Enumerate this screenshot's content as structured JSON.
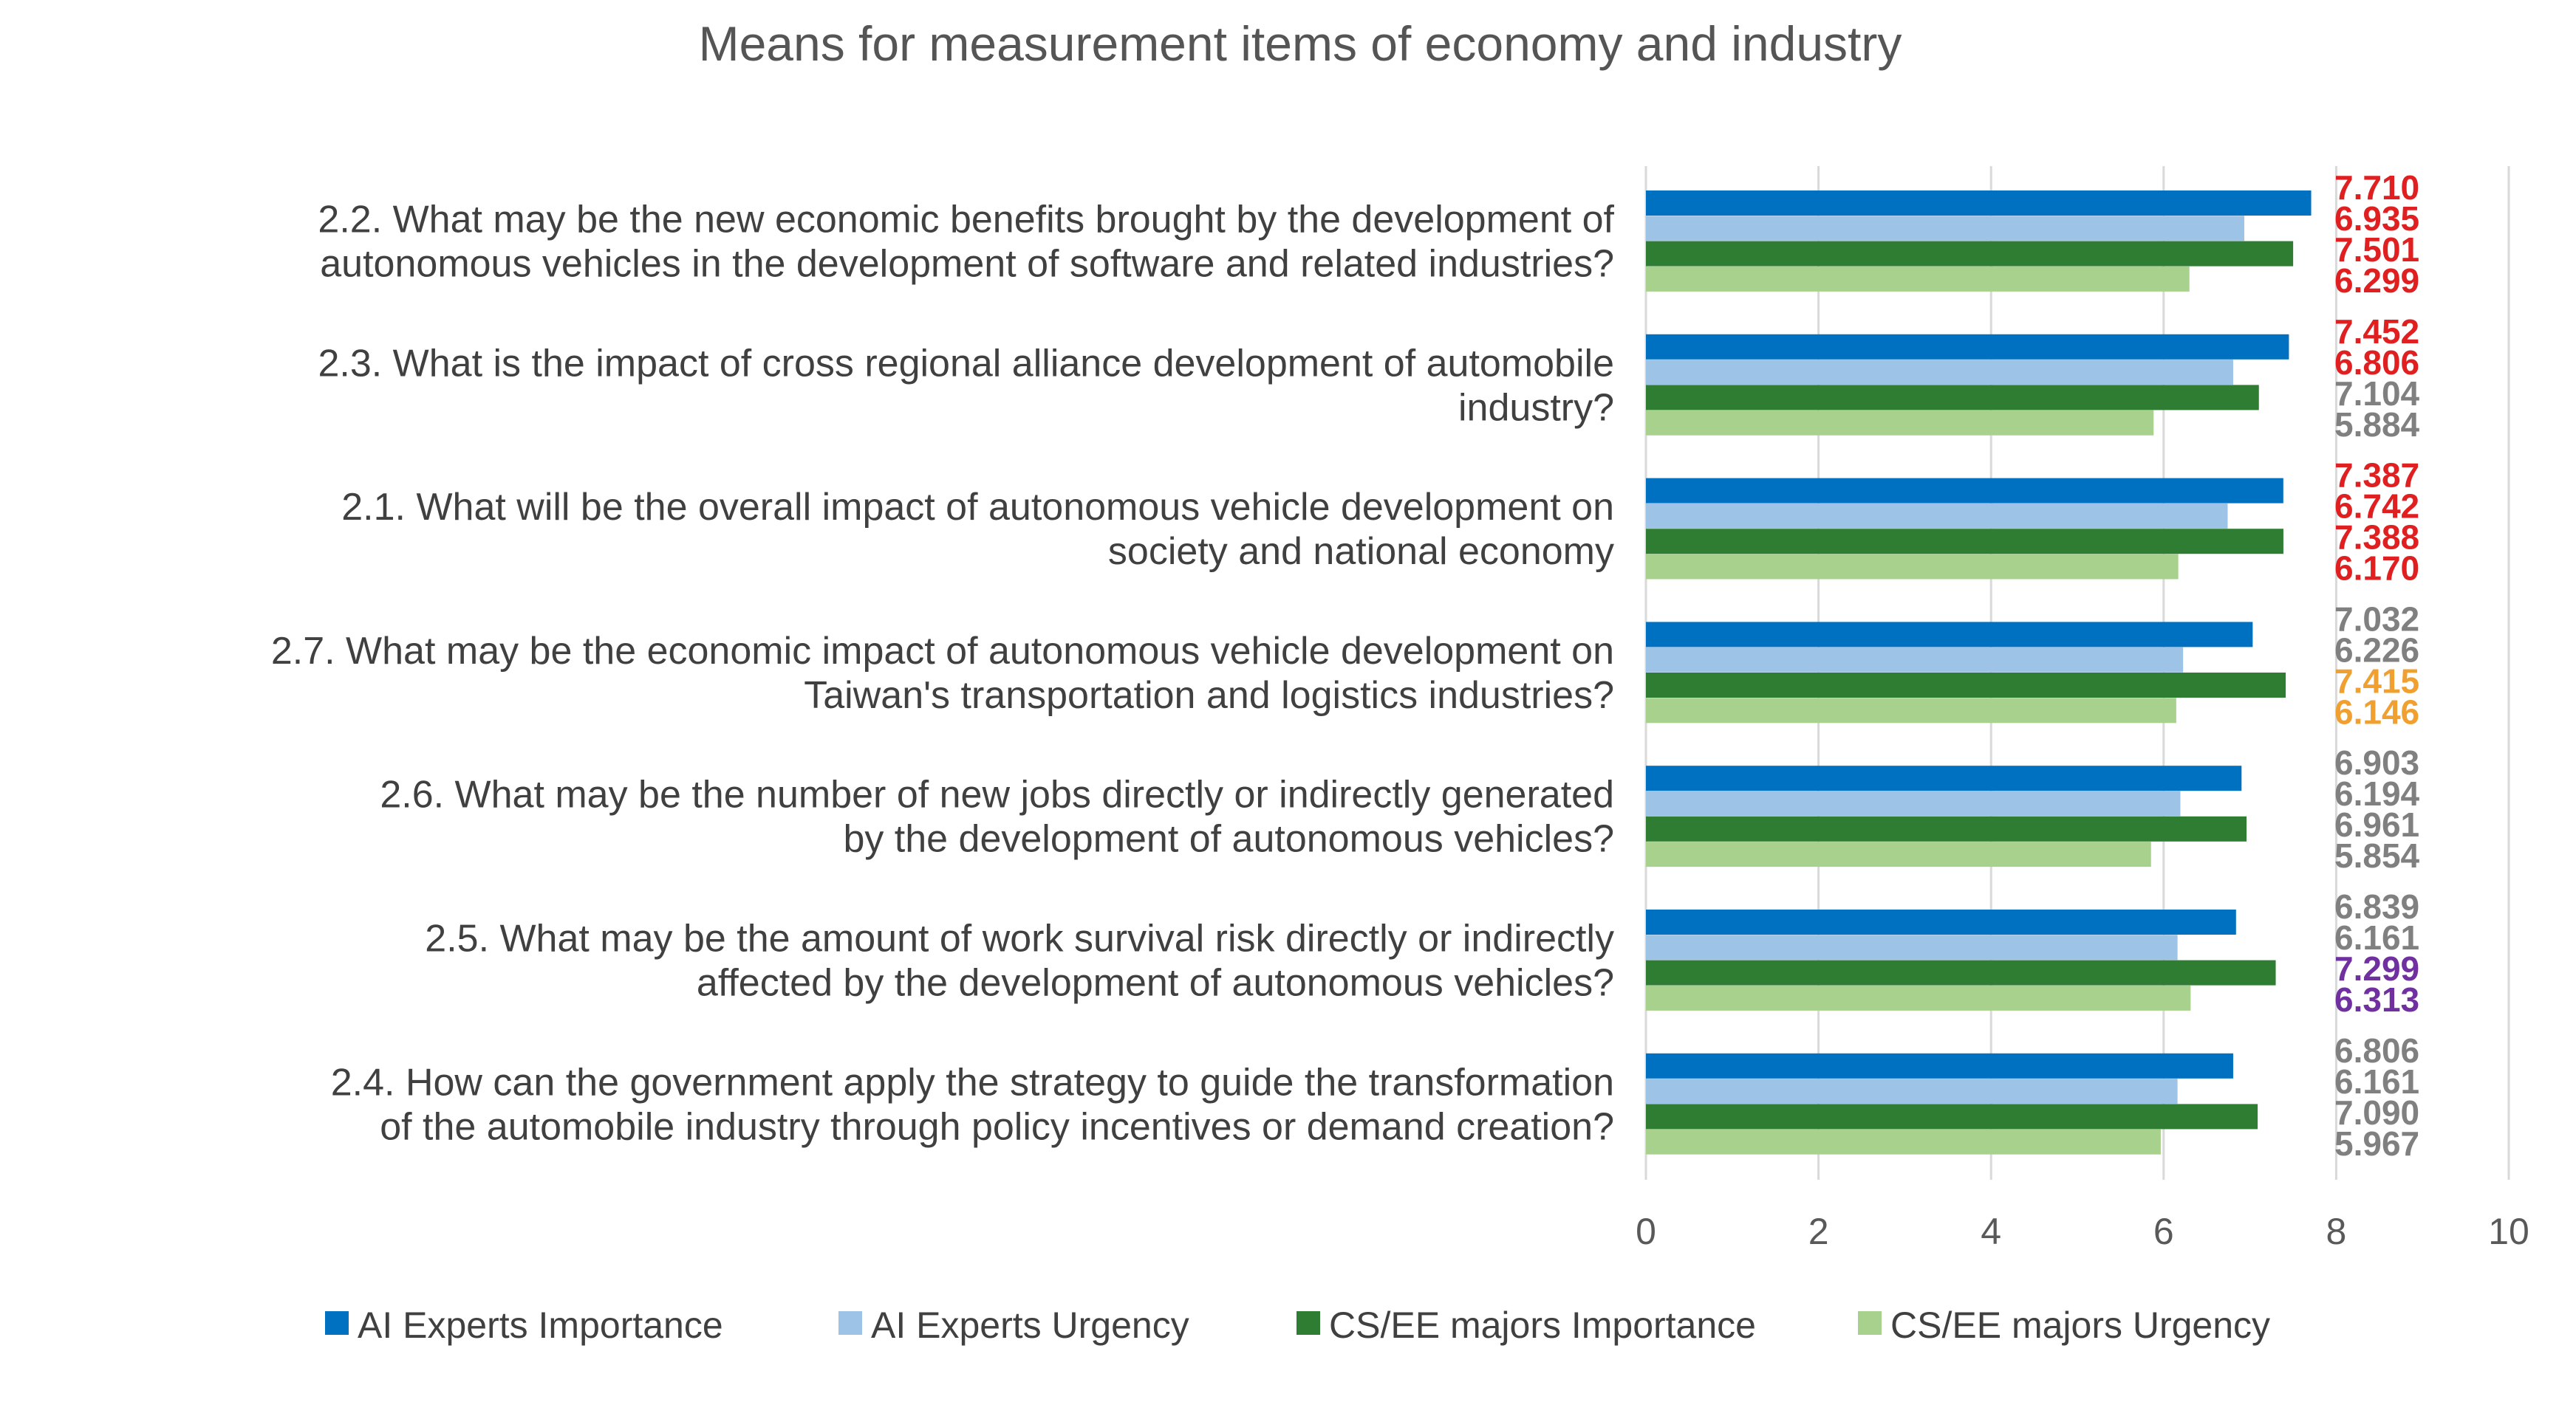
{
  "chart_data": {
    "type": "bar",
    "orientation": "horizontal",
    "title": "Means for measurement items of economy and industry",
    "xlabel": "",
    "ylabel": "",
    "xlim": [
      0,
      10
    ],
    "x_ticks": [
      0,
      2,
      4,
      6,
      8,
      10
    ],
    "grid": true,
    "legend_position": "bottom",
    "categories": [
      [
        "2.2. What may be the new economic benefits brought by the development of",
        "autonomous vehicles in the development of software and related industries?"
      ],
      [
        "2.3. What is the impact of cross regional alliance development of automobile",
        "industry?"
      ],
      [
        "2.1. What will be the overall impact of autonomous vehicle development on",
        "society and national economy"
      ],
      [
        "2.7. What may be the economic impact of autonomous vehicle development on",
        "Taiwan's transportation and logistics industries?"
      ],
      [
        "2.6. What may be the number of new jobs directly or indirectly generated",
        "by the development of autonomous vehicles?"
      ],
      [
        "2.5. What may be the amount of work survival risk directly or indirectly",
        "affected by the development of autonomous vehicles?"
      ],
      [
        "2.4. How can the government apply the strategy to guide the transformation",
        "of the automobile industry through policy incentives or demand creation?"
      ]
    ],
    "series": [
      {
        "name": "AI Experts  Importance",
        "color": "#0070c0",
        "values": [
          7.71,
          7.452,
          7.387,
          7.032,
          6.903,
          6.839,
          6.806
        ]
      },
      {
        "name": "AI Experts  Urgency",
        "color": "#9dc3e6",
        "values": [
          6.935,
          6.806,
          6.742,
          6.226,
          6.194,
          6.161,
          6.161
        ]
      },
      {
        "name": "CS/EE majors Importance",
        "color": "#2e7d32",
        "values": [
          7.501,
          7.104,
          7.388,
          7.415,
          6.961,
          7.299,
          7.09
        ]
      },
      {
        "name": "CS/EE majors Urgency",
        "color": "#a9d18e",
        "values": [
          6.299,
          5.884,
          6.17,
          6.146,
          5.854,
          6.313,
          5.967
        ]
      }
    ],
    "data_labels": [
      [
        {
          "text": "7.710",
          "color": "#e02020"
        },
        {
          "text": "6.935",
          "color": "#e02020"
        },
        {
          "text": "7.501",
          "color": "#e02020"
        },
        {
          "text": "6.299",
          "color": "#e02020"
        }
      ],
      [
        {
          "text": "7.452",
          "color": "#e02020"
        },
        {
          "text": "6.806",
          "color": "#e02020"
        },
        {
          "text": "7.104",
          "color": "#808080"
        },
        {
          "text": "5.884",
          "color": "#808080"
        }
      ],
      [
        {
          "text": "7.387",
          "color": "#e02020"
        },
        {
          "text": "6.742",
          "color": "#e02020"
        },
        {
          "text": "7.388",
          "color": "#e02020"
        },
        {
          "text": "6.170",
          "color": "#e02020"
        }
      ],
      [
        {
          "text": "7.032",
          "color": "#808080"
        },
        {
          "text": "6.226",
          "color": "#808080"
        },
        {
          "text": "7.415",
          "color": "#f0a030"
        },
        {
          "text": "6.146",
          "color": "#f0a030"
        }
      ],
      [
        {
          "text": "6.903",
          "color": "#808080"
        },
        {
          "text": "6.194",
          "color": "#808080"
        },
        {
          "text": "6.961",
          "color": "#808080"
        },
        {
          "text": "5.854",
          "color": "#808080"
        }
      ],
      [
        {
          "text": "6.839",
          "color": "#808080"
        },
        {
          "text": "6.161",
          "color": "#808080"
        },
        {
          "text": "7.299",
          "color": "#7030a0"
        },
        {
          "text": "6.313",
          "color": "#7030a0"
        }
      ],
      [
        {
          "text": "6.806",
          "color": "#808080"
        },
        {
          "text": "6.161",
          "color": "#808080"
        },
        {
          "text": "7.090",
          "color": "#808080"
        },
        {
          "text": "5.967",
          "color": "#808080"
        }
      ]
    ]
  }
}
